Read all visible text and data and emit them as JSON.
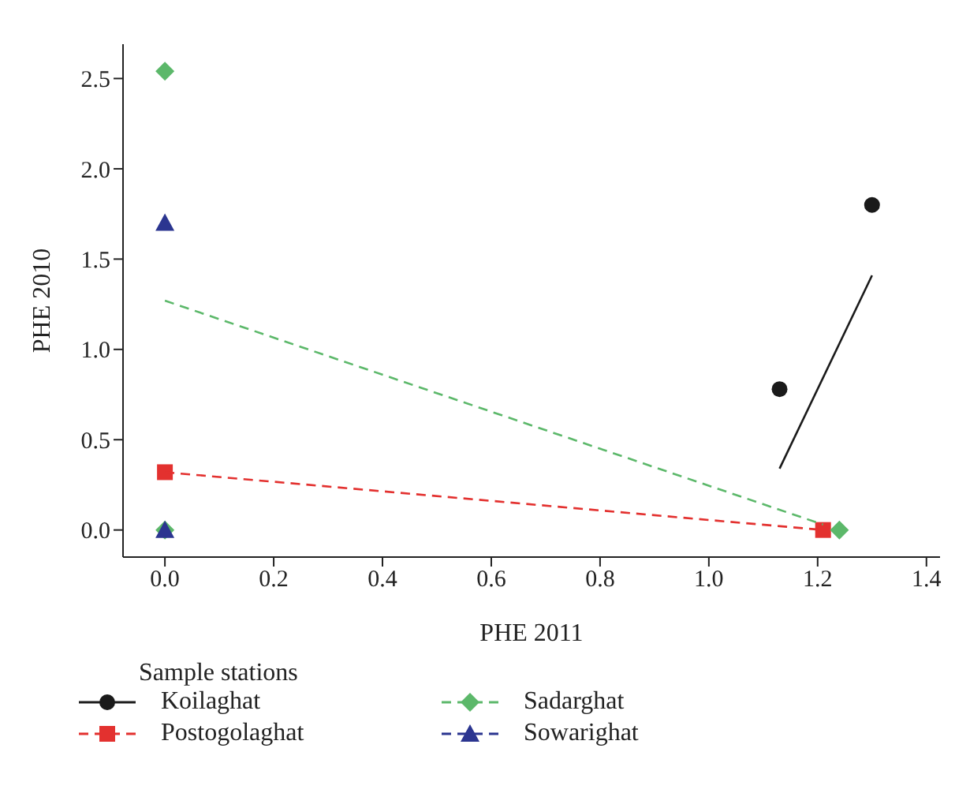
{
  "chart_data": {
    "type": "scatter",
    "xlabel": "PHE 2011",
    "ylabel": "PHE 2010",
    "legend_title": "Sample stations",
    "legend": "bottom",
    "grid": false,
    "xlim": [
      -0.077,
      1.425
    ],
    "xticks": [
      {
        "value": 0,
        "label": "0.0"
      },
      0.2,
      0.4,
      0.6,
      0.8,
      {
        "value": 1,
        "label": "1.0"
      },
      1.2,
      1.4
    ],
    "ylim": [
      -0.15,
      2.69
    ],
    "yticks": [
      {
        "value": 0,
        "label": "0.0"
      },
      0.5,
      {
        "value": 1,
        "label": "1.0"
      },
      1.5,
      {
        "value": 2,
        "label": "2.0"
      },
      2.5
    ],
    "series": [
      {
        "name": "Koilaghat",
        "color": "#1a1a1a",
        "marker": "circle",
        "line_style": "solid",
        "x": [
          1.13,
          1.3
        ],
        "values": [
          0.78,
          1.8
        ]
      },
      {
        "name": "Postogolaghat",
        "color": "#e3312f",
        "marker": "square",
        "line_style": "dashed",
        "x": [
          0,
          1.21
        ],
        "values": [
          0.32,
          0
        ]
      },
      {
        "name": "Sadarghat",
        "color": "#5cb86a",
        "marker": "diamond",
        "line_style": "dashed",
        "x": [
          0,
          0,
          1.24
        ],
        "values": [
          2.54,
          0,
          0
        ]
      },
      {
        "name": "Sowarighat",
        "color": "#2b3590",
        "marker": "triangle",
        "line_style": "dashed",
        "x": [
          0,
          0
        ],
        "values": [
          1.7,
          0
        ]
      },
      {
        "type": "line",
        "color": "#1a1a1a",
        "marker": "none",
        "line_style": "solid",
        "x": [
          1.13,
          1.3
        ],
        "values": [
          0.34,
          1.41
        ]
      },
      {
        "type": "line",
        "color": "#e3312f",
        "marker": "none",
        "line_style": "dashed",
        "x": [
          0,
          1.21
        ],
        "values": [
          0.32,
          0
        ]
      },
      {
        "type": "line",
        "color": "#5cb86a",
        "marker": "none",
        "line_style": "dashed",
        "x": [
          0,
          1.21
        ],
        "values": [
          1.27,
          0.03
        ]
      }
    ]
  }
}
